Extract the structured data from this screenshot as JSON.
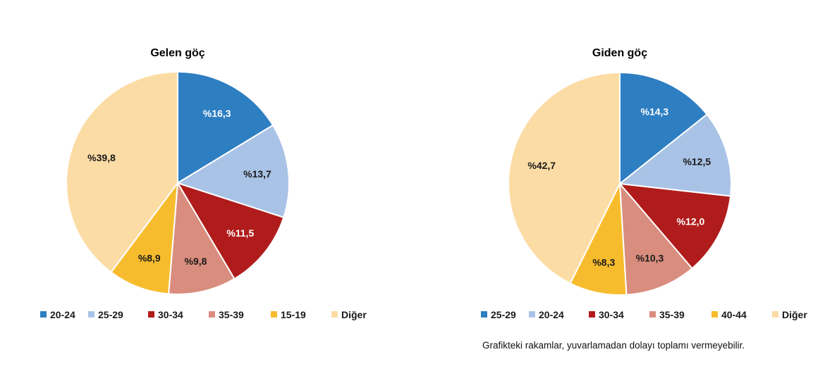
{
  "chart_data": [
    {
      "type": "pie",
      "title": "Gelen göç",
      "value_prefix": "%",
      "slices": [
        {
          "label": "20-24",
          "value": 16.3,
          "display": "%16,3",
          "color": "#2e7ec2",
          "label_color": "#ffffff"
        },
        {
          "label": "25-29",
          "value": 13.7,
          "display": "%13,7",
          "color": "#a9c3e6",
          "label_color": "#1a1a1a"
        },
        {
          "label": "30-34",
          "value": 11.5,
          "display": "%11,5",
          "color": "#b01c1c",
          "label_color": "#ffffff"
        },
        {
          "label": "35-39",
          "value": 9.8,
          "display": "%9,8",
          "color": "#d98d7e",
          "label_color": "#1a1a1a"
        },
        {
          "label": "15-19",
          "value": 8.9,
          "display": "%8,9",
          "color": "#f7bc2e",
          "label_color": "#1a1a1a"
        },
        {
          "label": "Diğer",
          "value": 39.8,
          "display": "%39,8",
          "color": "#fcdca5",
          "label_color": "#1a1a1a"
        }
      ],
      "legend_position": "bottom"
    },
    {
      "type": "pie",
      "title": "Giden göç",
      "value_prefix": "%",
      "slices": [
        {
          "label": "25-29",
          "value": 14.3,
          "display": "%14,3",
          "color": "#2e7ec2",
          "label_color": "#ffffff"
        },
        {
          "label": "20-24",
          "value": 12.5,
          "display": "%12,5",
          "color": "#a9c3e6",
          "label_color": "#1a1a1a"
        },
        {
          "label": "30-34",
          "value": 12.0,
          "display": "%12,0",
          "color": "#b01c1c",
          "label_color": "#ffffff"
        },
        {
          "label": "35-39",
          "value": 10.3,
          "display": "%10,3",
          "color": "#d98d7e",
          "label_color": "#1a1a1a"
        },
        {
          "label": "40-44",
          "value": 8.3,
          "display": "%8,3",
          "color": "#f7bc2e",
          "label_color": "#1a1a1a"
        },
        {
          "label": "Diğer",
          "value": 42.7,
          "display": "%42,7",
          "color": "#fcdca5",
          "label_color": "#1a1a1a"
        }
      ],
      "legend_position": "bottom"
    }
  ],
  "footnote": "Grafikteki rakamlar, yuvarlamadan dolayı toplamı vermeyebilir."
}
